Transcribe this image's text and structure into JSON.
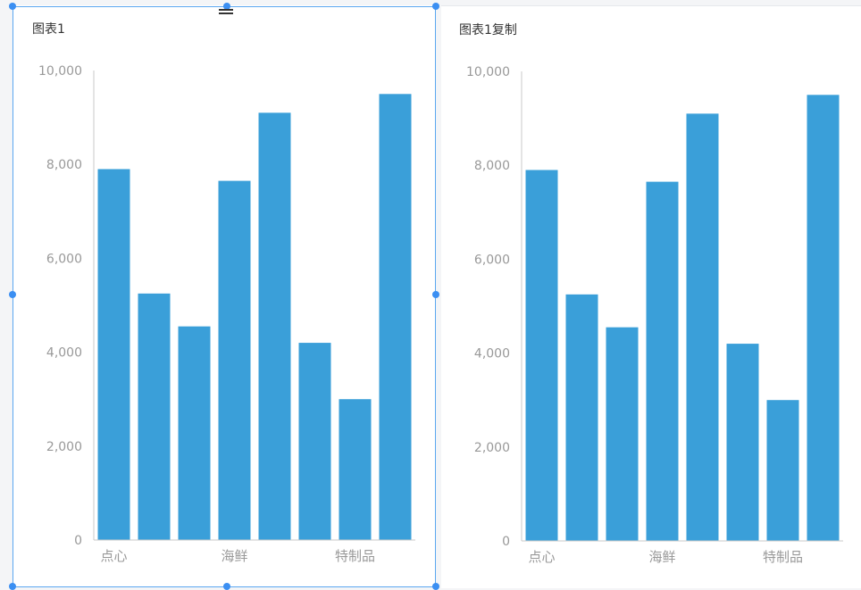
{
  "colors": {
    "bar": "#3a9fd9",
    "axis": "#c8c8c8",
    "tick_text": "#999999",
    "selection": "#3b8ff2"
  },
  "panels": [
    {
      "title": "图表1"
    },
    {
      "title": "图表1复制"
    }
  ],
  "chart_data": [
    {
      "type": "bar",
      "title": "图表1",
      "categories": [
        "点心",
        "",
        "",
        "海鲜",
        "",
        "",
        "特制品",
        ""
      ],
      "values": [
        7900,
        5250,
        4550,
        7650,
        9100,
        4200,
        3000,
        9500
      ],
      "ylim": [
        0,
        10000
      ],
      "yticks": [
        "0",
        "2,000",
        "4,000",
        "6,000",
        "8,000",
        "10,000"
      ],
      "ytick_values": [
        0,
        2000,
        4000,
        6000,
        8000,
        10000
      ],
      "xlabel": "",
      "ylabel": "",
      "grid": false,
      "legend": "none"
    },
    {
      "type": "bar",
      "title": "图表1复制",
      "categories": [
        "点心",
        "",
        "",
        "海鲜",
        "",
        "",
        "特制品",
        ""
      ],
      "values": [
        7900,
        5250,
        4550,
        7650,
        9100,
        4200,
        3000,
        9500
      ],
      "ylim": [
        0,
        10000
      ],
      "yticks": [
        "0",
        "2,000",
        "4,000",
        "6,000",
        "8,000",
        "10,000"
      ],
      "ytick_values": [
        0,
        2000,
        4000,
        6000,
        8000,
        10000
      ],
      "xlabel": "",
      "ylabel": "",
      "grid": false,
      "legend": "none"
    }
  ]
}
